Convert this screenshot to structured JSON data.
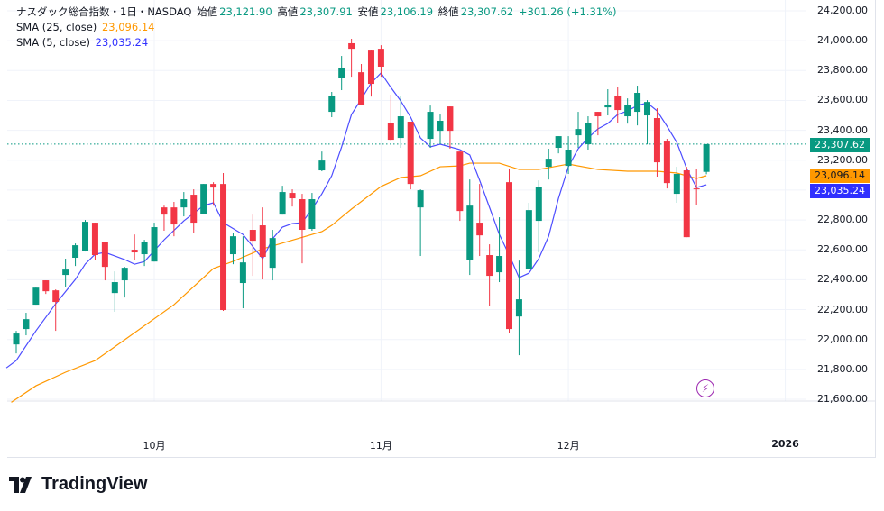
{
  "header": {
    "symbol": "ナスダック総合指数・1日・NASDAQ",
    "open_label": "始値",
    "open": "23,121.90",
    "high_label": "高値",
    "high": "23,307.91",
    "low_label": "安値",
    "low": "23,106.19",
    "close_label": "終値",
    "close": "23,307.62",
    "change": "+301.26 (+1.31%)"
  },
  "indicators": [
    {
      "label": "SMA (25, close)",
      "value": "23,096.14"
    },
    {
      "label": "SMA (5, close)",
      "value": "23,035.24"
    }
  ],
  "colors": {
    "up": "#089981",
    "down": "#f23645",
    "sma25": "#ff9800",
    "sma5": "#2962ff",
    "sma5_tag": "#3030ff",
    "bolt": "#9c27b0"
  },
  "price_axis": [
    "24,200.00",
    "24,000.00",
    "23,800.00",
    "23,600.00",
    "23,400.00",
    "23,200.00",
    "22,800.00",
    "22,600.00",
    "22,400.00",
    "22,200.00",
    "22,000.00",
    "21,800.00",
    "21,600.00"
  ],
  "price_tags": {
    "last": "23,307.62",
    "sma25": "23,096.14",
    "sma5": "23,035.24"
  },
  "time_axis": [
    {
      "label": "10月",
      "index": 15
    },
    {
      "label": "11月",
      "index": 38
    },
    {
      "label": "12月",
      "index": 57
    },
    {
      "label": "2026",
      "index": 79
    }
  ],
  "brand": "TradingView",
  "icons": {
    "alert": "lightning-bolt-icon"
  },
  "chart_data": {
    "type": "candlestick",
    "ylim": [
      21600,
      24200
    ],
    "last_price": 23307.62,
    "ohlc": [
      [
        21967,
        22058,
        21907,
        22040
      ],
      [
        22070,
        22179,
        22028,
        22136
      ],
      [
        22233,
        22347,
        22233,
        22347
      ],
      [
        22396,
        22396,
        22305,
        22323
      ],
      [
        22329,
        22335,
        22058,
        22251
      ],
      [
        22432,
        22541,
        22354,
        22468
      ],
      [
        22547,
        22643,
        22492,
        22631
      ],
      [
        22595,
        22800,
        22589,
        22788
      ],
      [
        22782,
        22782,
        22535,
        22565
      ],
      [
        22655,
        22655,
        22396,
        22486
      ],
      [
        22311,
        22456,
        22185,
        22384
      ],
      [
        22396,
        22486,
        22281,
        22480
      ],
      [
        22601,
        22703,
        22535,
        22583
      ],
      [
        22571,
        22667,
        22492,
        22655
      ],
      [
        22522,
        22782,
        22522,
        22752
      ],
      [
        22884,
        22896,
        22728,
        22836
      ],
      [
        22884,
        22921,
        22691,
        22770
      ],
      [
        22884,
        22987,
        22824,
        22939
      ],
      [
        22969,
        23005,
        22715,
        22782
      ],
      [
        22842,
        23041,
        22842,
        23041
      ],
      [
        23041,
        23053,
        22896,
        23017
      ],
      [
        23041,
        23114,
        22191,
        22197
      ],
      [
        22571,
        22715,
        22504,
        22691
      ],
      [
        22378,
        22691,
        22209,
        22516
      ],
      [
        22734,
        22836,
        22426,
        22661
      ],
      [
        22764,
        22884,
        22402,
        22553
      ],
      [
        22480,
        22734,
        22396,
        22679
      ],
      [
        22836,
        23029,
        22836,
        22987
      ],
      [
        22981,
        23005,
        22890,
        22945
      ],
      [
        22939,
        22975,
        22510,
        22734
      ],
      [
        22740,
        22981,
        22728,
        22939
      ],
      [
        23132,
        23258,
        23126,
        23198
      ],
      [
        23524,
        23657,
        23488,
        23633
      ],
      [
        23753,
        23898,
        23669,
        23820
      ],
      [
        23983,
        24013,
        23759,
        23946
      ],
      [
        23789,
        23844,
        23572,
        23572
      ],
      [
        23934,
        23940,
        23626,
        23711
      ],
      [
        23946,
        23970,
        23759,
        23826
      ],
      [
        23452,
        23639,
        23331,
        23337
      ],
      [
        23349,
        23633,
        23283,
        23494
      ],
      [
        23458,
        23458,
        23005,
        23041
      ],
      [
        22884,
        23005,
        22559,
        22999
      ],
      [
        23343,
        23566,
        23283,
        23524
      ],
      [
        23397,
        23506,
        23307,
        23464
      ],
      [
        23560,
        23560,
        23277,
        23397
      ],
      [
        23258,
        23258,
        22794,
        22860
      ],
      [
        22535,
        23071,
        22432,
        22896
      ],
      [
        22782,
        23041,
        22559,
        22697
      ],
      [
        22565,
        22637,
        22227,
        22426
      ],
      [
        22450,
        22818,
        22384,
        22559
      ],
      [
        23053,
        23144,
        22040,
        22070
      ],
      [
        22154,
        22528,
        21895,
        22269
      ],
      [
        22474,
        22915,
        22474,
        22866
      ],
      [
        22794,
        23065,
        22583,
        23023
      ],
      [
        23156,
        23277,
        23071,
        23210
      ],
      [
        23283,
        23361,
        23246,
        23361
      ],
      [
        23162,
        23361,
        23108,
        23271
      ],
      [
        23367,
        23524,
        23283,
        23409
      ],
      [
        23307,
        23494,
        23271,
        23452
      ],
      [
        23524,
        23524,
        23367,
        23494
      ],
      [
        23554,
        23675,
        23500,
        23572
      ],
      [
        23633,
        23693,
        23452,
        23536
      ],
      [
        23494,
        23614,
        23445,
        23572
      ],
      [
        23524,
        23699,
        23433,
        23651
      ],
      [
        23500,
        23602,
        23307,
        23590
      ],
      [
        23482,
        23548,
        23090,
        23186
      ],
      [
        23325,
        23343,
        23011,
        23047
      ],
      [
        22975,
        23156,
        22915,
        23108
      ],
      [
        23132,
        23156,
        22685,
        22685
      ],
      [
        23011,
        23144,
        22903,
        23005
      ],
      [
        23121.9,
        23307.91,
        23106.19,
        23307.62
      ]
    ],
    "sma5": [
      [
        0,
        21810
      ],
      [
        1,
        21859
      ],
      [
        3,
        22058
      ],
      [
        5,
        22239
      ],
      [
        7,
        22402
      ],
      [
        8,
        22505
      ],
      [
        9,
        22571
      ],
      [
        10,
        22583
      ],
      [
        12,
        22535
      ],
      [
        13,
        22504
      ],
      [
        14,
        22522
      ],
      [
        16,
        22667
      ],
      [
        18,
        22794
      ],
      [
        20,
        22896
      ],
      [
        21,
        22915
      ],
      [
        22,
        22782
      ],
      [
        24,
        22703
      ],
      [
        26,
        22541
      ],
      [
        27,
        22674
      ],
      [
        28,
        22752
      ],
      [
        29,
        22776
      ],
      [
        30,
        22782
      ],
      [
        31,
        22873
      ],
      [
        32,
        22975
      ],
      [
        33,
        23096
      ],
      [
        34,
        23289
      ],
      [
        35,
        23506
      ],
      [
        36,
        23609
      ],
      [
        37,
        23717
      ],
      [
        38,
        23784
      ],
      [
        39,
        23687
      ],
      [
        40,
        23597
      ],
      [
        41,
        23488
      ],
      [
        42,
        23349
      ],
      [
        43,
        23289
      ],
      [
        44,
        23307
      ],
      [
        45,
        23289
      ],
      [
        46,
        23271
      ],
      [
        47,
        23235
      ],
      [
        48,
        23066
      ],
      [
        49,
        22885
      ],
      [
        50,
        22703
      ],
      [
        51,
        22565
      ],
      [
        52,
        22414
      ],
      [
        53,
        22444
      ],
      [
        54,
        22541
      ],
      [
        55,
        22691
      ],
      [
        56,
        22945
      ],
      [
        57,
        23156
      ],
      [
        58,
        23277
      ],
      [
        59,
        23349
      ],
      [
        60,
        23410
      ],
      [
        61,
        23446
      ],
      [
        62,
        23506
      ],
      [
        63,
        23530
      ],
      [
        64,
        23566
      ],
      [
        65,
        23584
      ],
      [
        66,
        23530
      ],
      [
        67,
        23428
      ],
      [
        68,
        23319
      ],
      [
        69,
        23144
      ],
      [
        70,
        23017
      ],
      [
        71,
        23035.24
      ]
    ],
    "sma25": [
      [
        0.5,
        21580
      ],
      [
        3,
        21690
      ],
      [
        6,
        21781
      ],
      [
        9,
        21859
      ],
      [
        12,
        21998
      ],
      [
        17,
        22233
      ],
      [
        21,
        22475
      ],
      [
        23,
        22523
      ],
      [
        26,
        22607
      ],
      [
        29.5,
        22674
      ],
      [
        32,
        22722
      ],
      [
        33,
        22764
      ],
      [
        35,
        22873
      ],
      [
        38,
        23024
      ],
      [
        40,
        23084
      ],
      [
        42,
        23096
      ],
      [
        44,
        23156
      ],
      [
        46,
        23162
      ],
      [
        47,
        23180
      ],
      [
        50,
        23180
      ],
      [
        52,
        23138
      ],
      [
        54,
        23138
      ],
      [
        57,
        23174
      ],
      [
        60,
        23138
      ],
      [
        63,
        23126
      ],
      [
        66,
        23126
      ],
      [
        68,
        23114
      ],
      [
        70,
        23078
      ],
      [
        71,
        23096.14
      ]
    ]
  }
}
